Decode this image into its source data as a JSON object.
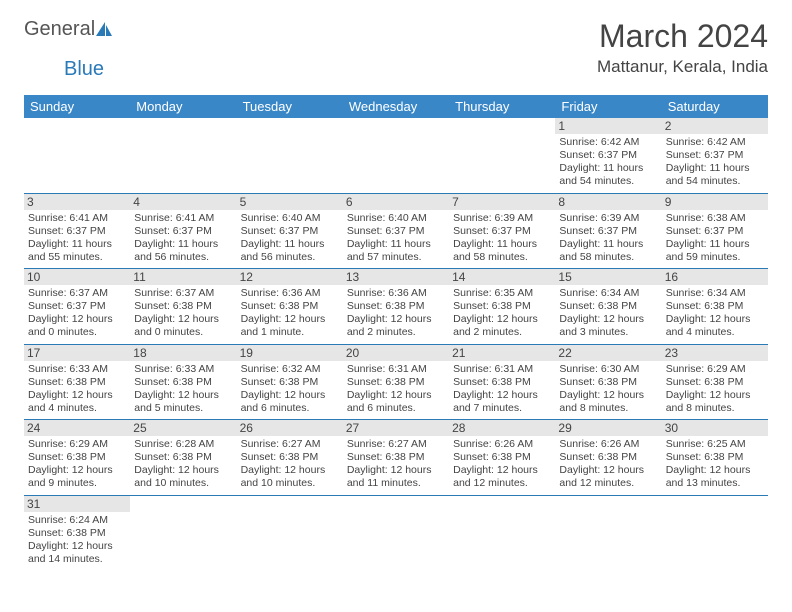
{
  "logo": {
    "text1": "General",
    "text2": "Blue"
  },
  "title": "March 2024",
  "location": "Mattanur, Kerala, India",
  "colors": {
    "header_bg": "#3a87c8",
    "header_text": "#ffffff",
    "row_border": "#2a7ab8",
    "daynum_bg": "#e6e6e6",
    "body_text": "#444444",
    "page_bg": "#ffffff"
  },
  "weekdays": [
    "Sunday",
    "Monday",
    "Tuesday",
    "Wednesday",
    "Thursday",
    "Friday",
    "Saturday"
  ],
  "weeks": [
    [
      null,
      null,
      null,
      null,
      null,
      {
        "d": "1",
        "sr": "Sunrise: 6:42 AM",
        "ss": "Sunset: 6:37 PM",
        "dl": "Daylight: 11 hours and 54 minutes."
      },
      {
        "d": "2",
        "sr": "Sunrise: 6:42 AM",
        "ss": "Sunset: 6:37 PM",
        "dl": "Daylight: 11 hours and 54 minutes."
      }
    ],
    [
      {
        "d": "3",
        "sr": "Sunrise: 6:41 AM",
        "ss": "Sunset: 6:37 PM",
        "dl": "Daylight: 11 hours and 55 minutes."
      },
      {
        "d": "4",
        "sr": "Sunrise: 6:41 AM",
        "ss": "Sunset: 6:37 PM",
        "dl": "Daylight: 11 hours and 56 minutes."
      },
      {
        "d": "5",
        "sr": "Sunrise: 6:40 AM",
        "ss": "Sunset: 6:37 PM",
        "dl": "Daylight: 11 hours and 56 minutes."
      },
      {
        "d": "6",
        "sr": "Sunrise: 6:40 AM",
        "ss": "Sunset: 6:37 PM",
        "dl": "Daylight: 11 hours and 57 minutes."
      },
      {
        "d": "7",
        "sr": "Sunrise: 6:39 AM",
        "ss": "Sunset: 6:37 PM",
        "dl": "Daylight: 11 hours and 58 minutes."
      },
      {
        "d": "8",
        "sr": "Sunrise: 6:39 AM",
        "ss": "Sunset: 6:37 PM",
        "dl": "Daylight: 11 hours and 58 minutes."
      },
      {
        "d": "9",
        "sr": "Sunrise: 6:38 AM",
        "ss": "Sunset: 6:37 PM",
        "dl": "Daylight: 11 hours and 59 minutes."
      }
    ],
    [
      {
        "d": "10",
        "sr": "Sunrise: 6:37 AM",
        "ss": "Sunset: 6:37 PM",
        "dl": "Daylight: 12 hours and 0 minutes."
      },
      {
        "d": "11",
        "sr": "Sunrise: 6:37 AM",
        "ss": "Sunset: 6:38 PM",
        "dl": "Daylight: 12 hours and 0 minutes."
      },
      {
        "d": "12",
        "sr": "Sunrise: 6:36 AM",
        "ss": "Sunset: 6:38 PM",
        "dl": "Daylight: 12 hours and 1 minute."
      },
      {
        "d": "13",
        "sr": "Sunrise: 6:36 AM",
        "ss": "Sunset: 6:38 PM",
        "dl": "Daylight: 12 hours and 2 minutes."
      },
      {
        "d": "14",
        "sr": "Sunrise: 6:35 AM",
        "ss": "Sunset: 6:38 PM",
        "dl": "Daylight: 12 hours and 2 minutes."
      },
      {
        "d": "15",
        "sr": "Sunrise: 6:34 AM",
        "ss": "Sunset: 6:38 PM",
        "dl": "Daylight: 12 hours and 3 minutes."
      },
      {
        "d": "16",
        "sr": "Sunrise: 6:34 AM",
        "ss": "Sunset: 6:38 PM",
        "dl": "Daylight: 12 hours and 4 minutes."
      }
    ],
    [
      {
        "d": "17",
        "sr": "Sunrise: 6:33 AM",
        "ss": "Sunset: 6:38 PM",
        "dl": "Daylight: 12 hours and 4 minutes."
      },
      {
        "d": "18",
        "sr": "Sunrise: 6:33 AM",
        "ss": "Sunset: 6:38 PM",
        "dl": "Daylight: 12 hours and 5 minutes."
      },
      {
        "d": "19",
        "sr": "Sunrise: 6:32 AM",
        "ss": "Sunset: 6:38 PM",
        "dl": "Daylight: 12 hours and 6 minutes."
      },
      {
        "d": "20",
        "sr": "Sunrise: 6:31 AM",
        "ss": "Sunset: 6:38 PM",
        "dl": "Daylight: 12 hours and 6 minutes."
      },
      {
        "d": "21",
        "sr": "Sunrise: 6:31 AM",
        "ss": "Sunset: 6:38 PM",
        "dl": "Daylight: 12 hours and 7 minutes."
      },
      {
        "d": "22",
        "sr": "Sunrise: 6:30 AM",
        "ss": "Sunset: 6:38 PM",
        "dl": "Daylight: 12 hours and 8 minutes."
      },
      {
        "d": "23",
        "sr": "Sunrise: 6:29 AM",
        "ss": "Sunset: 6:38 PM",
        "dl": "Daylight: 12 hours and 8 minutes."
      }
    ],
    [
      {
        "d": "24",
        "sr": "Sunrise: 6:29 AM",
        "ss": "Sunset: 6:38 PM",
        "dl": "Daylight: 12 hours and 9 minutes."
      },
      {
        "d": "25",
        "sr": "Sunrise: 6:28 AM",
        "ss": "Sunset: 6:38 PM",
        "dl": "Daylight: 12 hours and 10 minutes."
      },
      {
        "d": "26",
        "sr": "Sunrise: 6:27 AM",
        "ss": "Sunset: 6:38 PM",
        "dl": "Daylight: 12 hours and 10 minutes."
      },
      {
        "d": "27",
        "sr": "Sunrise: 6:27 AM",
        "ss": "Sunset: 6:38 PM",
        "dl": "Daylight: 12 hours and 11 minutes."
      },
      {
        "d": "28",
        "sr": "Sunrise: 6:26 AM",
        "ss": "Sunset: 6:38 PM",
        "dl": "Daylight: 12 hours and 12 minutes."
      },
      {
        "d": "29",
        "sr": "Sunrise: 6:26 AM",
        "ss": "Sunset: 6:38 PM",
        "dl": "Daylight: 12 hours and 12 minutes."
      },
      {
        "d": "30",
        "sr": "Sunrise: 6:25 AM",
        "ss": "Sunset: 6:38 PM",
        "dl": "Daylight: 12 hours and 13 minutes."
      }
    ],
    [
      {
        "d": "31",
        "sr": "Sunrise: 6:24 AM",
        "ss": "Sunset: 6:38 PM",
        "dl": "Daylight: 12 hours and 14 minutes."
      },
      null,
      null,
      null,
      null,
      null,
      null
    ]
  ]
}
